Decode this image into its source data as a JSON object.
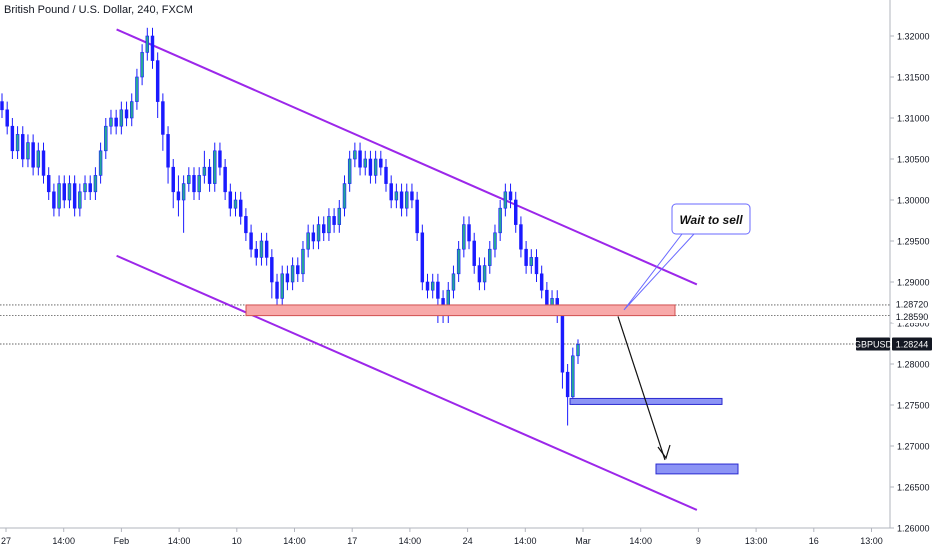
{
  "header": {
    "symbol_title": "British Pound / U.S. Dollar, 240, FXCM"
  },
  "colors": {
    "up_candle": "#26a69a",
    "down_candle": "#1a1aff",
    "wick": "#1a1aff",
    "channel": "#9c27ea",
    "resistance_zone_fill": "#f8a9a9",
    "resistance_zone_border": "#d05050",
    "target_fill": "#8c94f5",
    "target_border": "#2a2ad0",
    "callout_border": "#6a6aff"
  },
  "chart_data": {
    "type": "candlestick",
    "ylim": [
      1.2575,
      1.323
    ],
    "y_ticks": [
      "1.32000",
      "1.31500",
      "1.31000",
      "1.30500",
      "1.30000",
      "1.29500",
      "1.29000",
      "1.28500",
      "1.28000",
      "1.27500",
      "1.27000",
      "1.26500",
      "1.26000"
    ],
    "x_ticks": [
      "27",
      "14:00",
      "Feb",
      "14:00",
      "10",
      "14:00",
      "17",
      "14:00",
      "24",
      "14:00",
      "Mar",
      "14:00",
      "9",
      "13:00",
      "16",
      "13:00"
    ],
    "price_labels": [
      {
        "text": "1.28720",
        "kind": "level"
      },
      {
        "text": "1.28590",
        "kind": "level"
      },
      {
        "text": "GBPUSD",
        "kind": "symbol"
      },
      {
        "text": "1.28244",
        "kind": "current"
      }
    ],
    "annotations": {
      "callout_text": "Wait to sell"
    },
    "resistance_zone": {
      "top": 1.2872,
      "bottom": 1.2859
    },
    "current_price": 1.28244,
    "channel_upper": [
      [
        0.131,
        1.3208
      ],
      [
        0.783,
        1.2897
      ]
    ],
    "channel_lower": [
      [
        0.131,
        1.2932
      ],
      [
        0.783,
        1.2622
      ]
    ],
    "targets": [
      {
        "top": 1.2758,
        "bottom": 1.2752
      },
      {
        "top": 1.2678,
        "bottom": 1.2666
      }
    ],
    "candles": [
      [
        1.312,
        1.311,
        1.313,
        1.31
      ],
      [
        1.311,
        1.309,
        1.312,
        1.308
      ],
      [
        1.309,
        1.306,
        1.31,
        1.305
      ],
      [
        1.306,
        1.308,
        1.309,
        1.305
      ],
      [
        1.308,
        1.305,
        1.309,
        1.304
      ],
      [
        1.305,
        1.307,
        1.308,
        1.304
      ],
      [
        1.307,
        1.304,
        1.308,
        1.303
      ],
      [
        1.304,
        1.306,
        1.307,
        1.303
      ],
      [
        1.306,
        1.303,
        1.307,
        1.302
      ],
      [
        1.303,
        1.301,
        1.304,
        1.3
      ],
      [
        1.301,
        1.299,
        1.302,
        1.298
      ],
      [
        1.299,
        1.302,
        1.303,
        1.298
      ],
      [
        1.302,
        1.3,
        1.303,
        1.299
      ],
      [
        1.3,
        1.302,
        1.303,
        1.299
      ],
      [
        1.302,
        1.299,
        1.303,
        1.298
      ],
      [
        1.299,
        1.301,
        1.302,
        1.298
      ],
      [
        1.301,
        1.302,
        1.303,
        1.3
      ],
      [
        1.302,
        1.301,
        1.303,
        1.3
      ],
      [
        1.301,
        1.303,
        1.304,
        1.3
      ],
      [
        1.303,
        1.306,
        1.307,
        1.302
      ],
      [
        1.306,
        1.309,
        1.31,
        1.305
      ],
      [
        1.309,
        1.31,
        1.311,
        1.308
      ],
      [
        1.31,
        1.309,
        1.311,
        1.308
      ],
      [
        1.309,
        1.311,
        1.312,
        1.308
      ],
      [
        1.311,
        1.31,
        1.312,
        1.309
      ],
      [
        1.31,
        1.312,
        1.313,
        1.309
      ],
      [
        1.312,
        1.315,
        1.316,
        1.311
      ],
      [
        1.315,
        1.318,
        1.319,
        1.314
      ],
      [
        1.318,
        1.32,
        1.321,
        1.317
      ],
      [
        1.32,
        1.317,
        1.321,
        1.316
      ],
      [
        1.317,
        1.312,
        1.318,
        1.31
      ],
      [
        1.312,
        1.308,
        1.313,
        1.306
      ],
      [
        1.308,
        1.304,
        1.309,
        1.302
      ],
      [
        1.304,
        1.301,
        1.305,
        1.299
      ],
      [
        1.301,
        1.3,
        1.303,
        1.298
      ],
      [
        1.3,
        1.302,
        1.303,
        1.296
      ],
      [
        1.302,
        1.303,
        1.304,
        1.301
      ],
      [
        1.303,
        1.301,
        1.304,
        1.3
      ],
      [
        1.301,
        1.303,
        1.304,
        1.3
      ],
      [
        1.303,
        1.304,
        1.306,
        1.302
      ],
      [
        1.304,
        1.302,
        1.305,
        1.301
      ],
      [
        1.302,
        1.306,
        1.307,
        1.301
      ],
      [
        1.306,
        1.304,
        1.307,
        1.303
      ],
      [
        1.304,
        1.301,
        1.305,
        1.3
      ],
      [
        1.301,
        1.299,
        1.302,
        1.298
      ],
      [
        1.299,
        1.3,
        1.301,
        1.298
      ],
      [
        1.3,
        1.298,
        1.301,
        1.297
      ],
      [
        1.298,
        1.296,
        1.299,
        1.295
      ],
      [
        1.296,
        1.294,
        1.297,
        1.293
      ],
      [
        1.294,
        1.293,
        1.295,
        1.292
      ],
      [
        1.293,
        1.295,
        1.296,
        1.292
      ],
      [
        1.295,
        1.293,
        1.296,
        1.292
      ],
      [
        1.293,
        1.29,
        1.294,
        1.288
      ],
      [
        1.29,
        1.288,
        1.291,
        1.287
      ],
      [
        1.288,
        1.291,
        1.292,
        1.287
      ],
      [
        1.291,
        1.29,
        1.292,
        1.289
      ],
      [
        1.29,
        1.292,
        1.293,
        1.289
      ],
      [
        1.292,
        1.291,
        1.293,
        1.29
      ],
      [
        1.291,
        1.294,
        1.295,
        1.29
      ],
      [
        1.294,
        1.296,
        1.297,
        1.293
      ],
      [
        1.296,
        1.295,
        1.297,
        1.294
      ],
      [
        1.295,
        1.297,
        1.298,
        1.294
      ],
      [
        1.297,
        1.296,
        1.298,
        1.295
      ],
      [
        1.296,
        1.298,
        1.299,
        1.295
      ],
      [
        1.298,
        1.297,
        1.299,
        1.296
      ],
      [
        1.297,
        1.299,
        1.3,
        1.296
      ],
      [
        1.299,
        1.302,
        1.303,
        1.298
      ],
      [
        1.302,
        1.305,
        1.306,
        1.301
      ],
      [
        1.305,
        1.306,
        1.307,
        1.304
      ],
      [
        1.306,
        1.304,
        1.307,
        1.303
      ],
      [
        1.304,
        1.305,
        1.306,
        1.303
      ],
      [
        1.305,
        1.303,
        1.306,
        1.302
      ],
      [
        1.303,
        1.305,
        1.306,
        1.302
      ],
      [
        1.305,
        1.304,
        1.306,
        1.303
      ],
      [
        1.304,
        1.302,
        1.305,
        1.301
      ],
      [
        1.302,
        1.3,
        1.303,
        1.299
      ],
      [
        1.3,
        1.301,
        1.302,
        1.299
      ],
      [
        1.301,
        1.299,
        1.302,
        1.298
      ],
      [
        1.299,
        1.301,
        1.302,
        1.298
      ],
      [
        1.301,
        1.3,
        1.302,
        1.299
      ],
      [
        1.3,
        1.296,
        1.301,
        1.295
      ],
      [
        1.296,
        1.29,
        1.297,
        1.289
      ],
      [
        1.29,
        1.289,
        1.291,
        1.288
      ],
      [
        1.289,
        1.29,
        1.291,
        1.288
      ],
      [
        1.29,
        1.288,
        1.291,
        1.285
      ],
      [
        1.288,
        1.286,
        1.289,
        1.285
      ],
      [
        1.286,
        1.289,
        1.29,
        1.285
      ],
      [
        1.289,
        1.291,
        1.292,
        1.288
      ],
      [
        1.291,
        1.294,
        1.295,
        1.29
      ],
      [
        1.294,
        1.297,
        1.298,
        1.293
      ],
      [
        1.297,
        1.295,
        1.298,
        1.294
      ],
      [
        1.295,
        1.292,
        1.296,
        1.291
      ],
      [
        1.292,
        1.29,
        1.293,
        1.289
      ],
      [
        1.29,
        1.292,
        1.293,
        1.289
      ],
      [
        1.292,
        1.294,
        1.295,
        1.291
      ],
      [
        1.294,
        1.296,
        1.297,
        1.293
      ],
      [
        1.296,
        1.299,
        1.3,
        1.295
      ],
      [
        1.299,
        1.301,
        1.302,
        1.298
      ],
      [
        1.301,
        1.3,
        1.302,
        1.299
      ],
      [
        1.3,
        1.297,
        1.301,
        1.296
      ],
      [
        1.297,
        1.294,
        1.298,
        1.293
      ],
      [
        1.294,
        1.292,
        1.295,
        1.291
      ],
      [
        1.292,
        1.293,
        1.294,
        1.291
      ],
      [
        1.293,
        1.291,
        1.294,
        1.29
      ],
      [
        1.291,
        1.289,
        1.292,
        1.288
      ],
      [
        1.289,
        1.287,
        1.29,
        1.286
      ],
      [
        1.287,
        1.288,
        1.289,
        1.286
      ],
      [
        1.288,
        1.286,
        1.289,
        1.285
      ],
      [
        1.286,
        1.279,
        1.287,
        1.277
      ],
      [
        1.279,
        1.276,
        1.28,
        1.2725
      ],
      [
        1.276,
        1.281,
        1.282,
        1.275
      ],
      [
        1.281,
        1.2824,
        1.283,
        1.28
      ]
    ]
  }
}
